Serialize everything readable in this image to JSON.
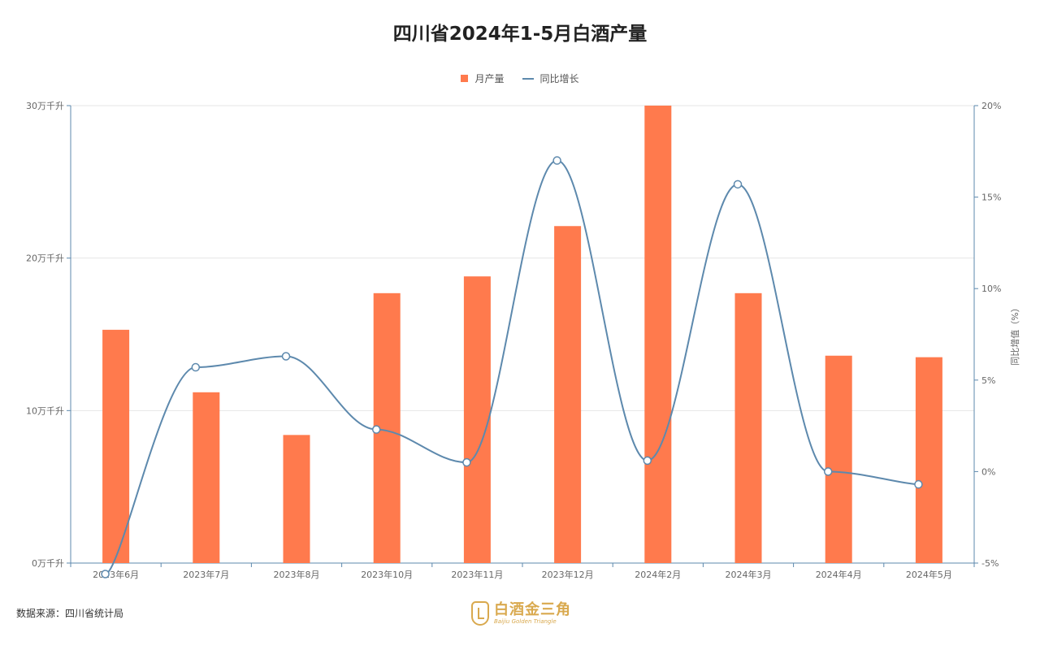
{
  "title": "四川省2024年1-5月白酒产量",
  "legend": {
    "bar_label": "月产量",
    "line_label": "同比增长"
  },
  "source": "数据来源：四川省统计局",
  "brand": {
    "name": "白酒金三角",
    "sub": "Baijiu Golden Triangle"
  },
  "colors": {
    "bar": "#ff7a4d",
    "line": "#5d89ad",
    "axis": "#5d89ad",
    "grid": "#e6e6e6"
  },
  "chart_data": {
    "type": "bar",
    "categories": [
      "2023年6月",
      "2023年7月",
      "2023年8月",
      "2023年10月",
      "2023年11月",
      "2023年12月",
      "2024年2月",
      "2024年3月",
      "2024年4月",
      "2024年5月"
    ],
    "series": [
      {
        "name": "月产量",
        "type": "bar",
        "axis": "left",
        "values": [
          15.3,
          11.2,
          8.4,
          17.7,
          18.8,
          22.1,
          30.0,
          17.7,
          13.6,
          13.5
        ]
      },
      {
        "name": "同比增长",
        "type": "line",
        "axis": "right",
        "values": [
          -5.6,
          5.7,
          6.3,
          2.3,
          0.5,
          17.0,
          0.6,
          15.7,
          0.0,
          -0.7
        ]
      }
    ],
    "yleft": {
      "ylim": [
        0,
        30
      ],
      "ticks": [
        0,
        10,
        20,
        30
      ],
      "tick_labels": [
        "0万千升",
        "10万千升",
        "20万千升",
        "30万千升"
      ]
    },
    "yright": {
      "label": "同比增值（%）",
      "ylim": [
        -5,
        20
      ],
      "ticks": [
        -5,
        0,
        5,
        10,
        15,
        20
      ],
      "tick_labels": [
        "-5%",
        "0%",
        "5%",
        "10%",
        "15%",
        "20%"
      ]
    },
    "grid": true,
    "legend_position": "top-center"
  }
}
